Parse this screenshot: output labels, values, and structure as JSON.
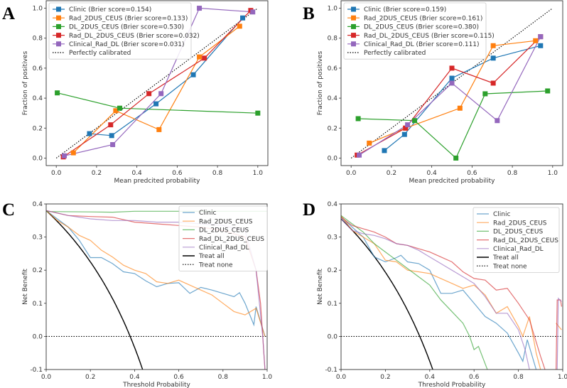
{
  "colors": {
    "Clinic": "#1f77b4",
    "Rad_2DUS_CEUS": "#ff7f0e",
    "DL_2DUS_CEUS": "#2ca02c",
    "Rad_DL_2DUS_CEUS": "#d62728",
    "Clinical_Rad_DL": "#9467bd",
    "Treat all": "#000000",
    "Treat none": "#000000",
    "Perfectly calibrated": "#000000"
  },
  "chart_data": [
    {
      "panel_label": "A",
      "type": "line",
      "xlabel": "Mean predcited probability",
      "ylabel": "Fraction of positives",
      "xlim": [
        -0.05,
        1.05
      ],
      "ylim": [
        -0.05,
        1.05
      ],
      "xticks": [
        0.0,
        0.2,
        0.4,
        0.6,
        0.8,
        1.0
      ],
      "yticks": [
        0.0,
        0.2,
        0.4,
        0.6,
        0.8,
        1.0
      ],
      "tick_decimals": 1,
      "legend": "top-left",
      "grid": false,
      "markers": "square",
      "series": [
        {
          "name": "Clinic",
          "label": "Clinic (Brier score=0.154)",
          "x": [
            0.165,
            0.275,
            0.495,
            0.68,
            0.925
          ],
          "y": [
            0.163,
            0.15,
            0.362,
            0.556,
            0.935
          ]
        },
        {
          "name": "Rad_2DUS_CEUS",
          "label": "Rad_2DUS_CEUS (Brier score=0.133)",
          "x": [
            0.085,
            0.295,
            0.51,
            0.71,
            0.91
          ],
          "y": [
            0.035,
            0.316,
            0.19,
            0.675,
            0.88
          ]
        },
        {
          "name": "DL_2DUS_CEUS",
          "label": "DL_2DUS_CEUS (Brier score=0.530)",
          "x": [
            0.005,
            0.315,
            1.0
          ],
          "y": [
            0.435,
            0.333,
            0.3
          ]
        },
        {
          "name": "Rad_DL_2DUS_CEUS",
          "label": "Rad_DL_2DUS_CEUS (Brier score=0.032)",
          "x": [
            0.035,
            0.27,
            0.46,
            0.735,
            0.965
          ],
          "y": [
            0.008,
            0.222,
            0.43,
            0.667,
            0.985
          ]
        },
        {
          "name": "Clinical_Rad_DL",
          "label": "Clinical_Rad_DL (Brier score=0.031)",
          "x": [
            0.04,
            0.28,
            0.52,
            0.71,
            0.975
          ],
          "y": [
            0.015,
            0.09,
            0.43,
            1.0,
            0.975
          ]
        }
      ],
      "reference": {
        "name": "Perfectly calibrated",
        "label": "Perfectly calibrated",
        "x": [
          0,
          1
        ],
        "y": [
          0,
          1
        ],
        "style": "dotted"
      }
    },
    {
      "panel_label": "B",
      "type": "line",
      "xlabel": "Mean predcited probability",
      "ylabel": "Fraction of positives",
      "xlim": [
        -0.05,
        1.05
      ],
      "ylim": [
        -0.05,
        1.05
      ],
      "xticks": [
        0.0,
        0.2,
        0.4,
        0.6,
        0.8,
        1.0
      ],
      "yticks": [
        0.0,
        0.2,
        0.4,
        0.6,
        0.8,
        1.0
      ],
      "tick_decimals": 1,
      "legend": "top-left",
      "grid": false,
      "markers": "square",
      "series": [
        {
          "name": "Clinic",
          "label": "Clinic (Brier score=0.159)",
          "x": [
            0.165,
            0.265,
            0.5,
            0.705,
            0.94
          ],
          "y": [
            0.05,
            0.158,
            0.533,
            0.667,
            0.75
          ]
        },
        {
          "name": "Rad_2DUS_CEUS",
          "label": "Rad_2DUS_CEUS (Brier score=0.161)",
          "x": [
            0.09,
            0.27,
            0.54,
            0.705,
            0.915
          ],
          "y": [
            0.1,
            0.2,
            0.333,
            0.75,
            0.783
          ]
        },
        {
          "name": "DL_2DUS_CEUS",
          "label": "DL_2DUS_CEUS (Brier score=0.380)",
          "x": [
            0.035,
            0.315,
            0.52,
            0.665,
            0.975
          ],
          "y": [
            0.263,
            0.25,
            0.0,
            0.429,
            0.448
          ]
        },
        {
          "name": "Rad_DL_2DUS_CEUS",
          "label": "Rad_DL_2DUS_CEUS (Brier score=0.115)",
          "x": [
            0.03,
            0.27,
            0.5,
            0.705,
            0.94
          ],
          "y": [
            0.02,
            0.2,
            0.6,
            0.5,
            0.81
          ]
        },
        {
          "name": "Clinical_Rad_DL",
          "label": "Clinical_Rad_DL (Brier score=0.111)",
          "x": [
            0.04,
            0.28,
            0.5,
            0.725,
            0.94
          ],
          "y": [
            0.02,
            0.222,
            0.5,
            0.25,
            0.81
          ]
        }
      ],
      "reference": {
        "name": "Perfectly calibrated",
        "label": "Perfectly calibrated",
        "x": [
          0,
          1
        ],
        "y": [
          0,
          1
        ],
        "style": "dotted"
      }
    },
    {
      "panel_label": "C",
      "type": "line",
      "xlabel": "Threshold Probability",
      "ylabel": "Net Benefit",
      "xlim": [
        0.0,
        1.0
      ],
      "ylim": [
        -0.1,
        0.4
      ],
      "xticks": [
        0.0,
        0.2,
        0.4,
        0.6,
        0.8,
        1.0
      ],
      "yticks": [
        -0.1,
        0.0,
        0.1,
        0.2,
        0.3,
        0.4
      ],
      "tick_decimals": 1,
      "legend": "top-right",
      "grid": false,
      "markers": "none",
      "prevalence": 0.38,
      "series": [
        {
          "name": "Clinic",
          "label": "Clinic",
          "x": [
            0,
            0.05,
            0.1,
            0.15,
            0.2,
            0.25,
            0.3,
            0.35,
            0.4,
            0.45,
            0.5,
            0.55,
            0.6,
            0.65,
            0.7,
            0.75,
            0.8,
            0.85,
            0.875,
            0.9,
            0.94,
            0.95,
            0.99
          ],
          "y": [
            0.38,
            0.355,
            0.33,
            0.29,
            0.238,
            0.238,
            0.22,
            0.195,
            0.19,
            0.168,
            0.15,
            0.16,
            0.162,
            0.13,
            0.148,
            0.14,
            0.13,
            0.12,
            0.132,
            0.1,
            0.035,
            0.09,
            0.0
          ]
        },
        {
          "name": "Rad_2DUS_CEUS",
          "label": "Rad_2DUS_CEUS",
          "x": [
            0,
            0.05,
            0.1,
            0.15,
            0.2,
            0.25,
            0.3,
            0.35,
            0.4,
            0.45,
            0.5,
            0.55,
            0.6,
            0.65,
            0.7,
            0.75,
            0.8,
            0.85,
            0.9,
            0.95,
            0.99
          ],
          "y": [
            0.38,
            0.35,
            0.33,
            0.305,
            0.29,
            0.26,
            0.24,
            0.215,
            0.2,
            0.19,
            0.165,
            0.16,
            0.17,
            0.155,
            0.14,
            0.125,
            0.1,
            0.075,
            0.065,
            0.085,
            0.0
          ]
        },
        {
          "name": "DL_2DUS_CEUS",
          "label": "DL_2DUS_CEUS",
          "x": [
            0,
            0.2,
            0.3,
            0.4,
            1.0
          ],
          "y": [
            0.377,
            0.376,
            0.375,
            0.378,
            0.378
          ]
        },
        {
          "name": "Rad_DL_2DUS_CEUS",
          "label": "Rad_DL_2DUS_CEUS",
          "x": [
            0,
            0.1,
            0.2,
            0.3,
            0.4,
            0.5,
            0.6,
            0.7,
            0.8,
            0.9,
            0.95,
            0.97,
            0.98,
            0.99
          ],
          "y": [
            0.38,
            0.365,
            0.362,
            0.36,
            0.345,
            0.34,
            0.335,
            0.33,
            0.32,
            0.3,
            0.2,
            0.1,
            0.0,
            -0.1
          ]
        },
        {
          "name": "Clinical_Rad_DL",
          "label": "Clinical_Rad_DL",
          "x": [
            0,
            0.1,
            0.2,
            0.3,
            0.4,
            0.5,
            0.6,
            0.7,
            0.8,
            0.9,
            0.95,
            0.98,
            0.99
          ],
          "y": [
            0.38,
            0.365,
            0.355,
            0.35,
            0.35,
            0.345,
            0.345,
            0.34,
            0.335,
            0.32,
            0.2,
            0.0,
            -0.1
          ]
        }
      ],
      "treat_all": {
        "name": "Treat all",
        "label": "Treat all"
      },
      "treat_none": {
        "name": "Treat none",
        "label": "Treat none",
        "y": 0.0
      }
    },
    {
      "panel_label": "D",
      "type": "line",
      "xlabel": "Threshold Probability",
      "ylabel": "Net Benefit",
      "xlim": [
        0.0,
        1.0
      ],
      "ylim": [
        -0.1,
        0.4
      ],
      "xticks": [
        0.0,
        0.2,
        0.4,
        0.6,
        0.8,
        1.0
      ],
      "yticks": [
        -0.1,
        0.0,
        0.1,
        0.2,
        0.3,
        0.4
      ],
      "tick_decimals": 1,
      "legend": "top-right",
      "grid": false,
      "markers": "none",
      "prevalence": 0.355,
      "series": [
        {
          "name": "Clinic",
          "label": "Clinic",
          "x": [
            0,
            0.05,
            0.1,
            0.15,
            0.2,
            0.25,
            0.27,
            0.3,
            0.35,
            0.4,
            0.45,
            0.5,
            0.55,
            0.6,
            0.65,
            0.7,
            0.75,
            0.8,
            0.82,
            0.84,
            0.88
          ],
          "y": [
            0.36,
            0.33,
            0.3,
            0.24,
            0.225,
            0.238,
            0.245,
            0.225,
            0.22,
            0.2,
            0.13,
            0.13,
            0.14,
            0.1,
            0.06,
            0.04,
            0.01,
            -0.05,
            -0.075,
            -0.01,
            -0.1
          ]
        },
        {
          "name": "Rad_2DUS_CEUS",
          "label": "Rad_2DUS_CEUS",
          "x": [
            0,
            0.05,
            0.1,
            0.15,
            0.2,
            0.25,
            0.3,
            0.35,
            0.4,
            0.45,
            0.5,
            0.55,
            0.6,
            0.65,
            0.7,
            0.75,
            0.8,
            0.82,
            0.85,
            0.88,
            0.9,
            null,
            0.97,
            0.995
          ],
          "y": [
            0.365,
            0.32,
            0.3,
            0.28,
            0.23,
            0.225,
            0.2,
            0.195,
            0.19,
            0.175,
            0.16,
            0.145,
            0.155,
            0.125,
            0.07,
            0.09,
            0.03,
            0.0,
            0.06,
            -0.05,
            -0.1,
            null,
            0.04,
            0.02
          ]
        },
        {
          "name": "DL_2DUS_CEUS",
          "label": "DL_2DUS_CEUS",
          "x": [
            0,
            0.05,
            0.1,
            0.15,
            0.2,
            0.25,
            0.3,
            0.35,
            0.4,
            0.45,
            0.5,
            0.55,
            0.58,
            0.6,
            0.62,
            0.66
          ],
          "y": [
            0.365,
            0.34,
            0.315,
            0.28,
            0.255,
            0.23,
            0.205,
            0.18,
            0.155,
            0.11,
            0.075,
            0.04,
            0.0,
            -0.04,
            -0.03,
            -0.1
          ]
        },
        {
          "name": "Rad_DL_2DUS_CEUS",
          "label": "Rad_DL_2DUS_CEUS",
          "x": [
            0,
            0.05,
            0.1,
            0.15,
            0.2,
            0.25,
            0.3,
            0.35,
            0.4,
            0.45,
            0.5,
            0.55,
            0.6,
            0.65,
            0.7,
            0.75,
            0.8,
            0.85,
            0.9,
            0.92,
            null,
            0.97,
            0.975,
            0.99,
            0.995
          ],
          "y": [
            0.36,
            0.335,
            0.325,
            0.315,
            0.3,
            0.28,
            0.275,
            0.265,
            0.255,
            0.24,
            0.225,
            0.195,
            0.175,
            0.17,
            0.14,
            0.145,
            0.1,
            0.05,
            -0.06,
            -0.1,
            null,
            -0.1,
            0.11,
            0.11,
            0.09
          ]
        },
        {
          "name": "Clinical_Rad_DL",
          "label": "Clinical_Rad_DL",
          "x": [
            0,
            0.05,
            0.1,
            0.15,
            0.2,
            0.25,
            0.3,
            0.35,
            0.4,
            0.45,
            0.5,
            0.55,
            0.6,
            0.65,
            0.7,
            0.75,
            0.8,
            0.83,
            0.85,
            null,
            0.975,
            0.98,
            0.995
          ],
          "y": [
            0.355,
            0.32,
            0.31,
            0.305,
            0.295,
            0.28,
            0.275,
            0.26,
            0.24,
            0.22,
            0.2,
            0.18,
            0.16,
            0.12,
            0.07,
            0.07,
            0.02,
            -0.04,
            -0.1,
            null,
            -0.1,
            0.115,
            0.105
          ]
        }
      ],
      "treat_all": {
        "name": "Treat all",
        "label": "Treat all"
      },
      "treat_none": {
        "name": "Treat none",
        "label": "Treat none",
        "y": 0.0
      }
    }
  ]
}
